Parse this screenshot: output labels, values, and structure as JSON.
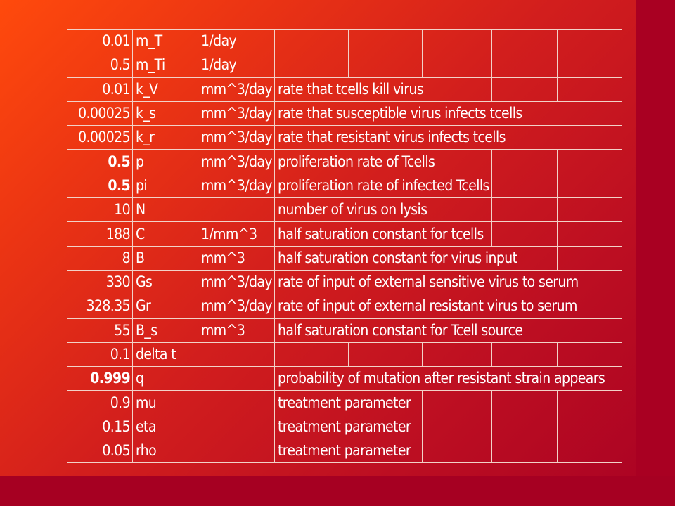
{
  "rows": [
    {
      "value": "0.01",
      "name": "m_T",
      "unit": "1/day",
      "description": "",
      "bold": false
    },
    {
      "value": "0.5",
      "name": "m_Ti",
      "unit": "1/day",
      "description": "",
      "bold": false
    },
    {
      "value": "0.01",
      "name": "k_V",
      "unit": "mm^3/day",
      "description": "rate that tcells kill virus",
      "bold": false
    },
    {
      "value": "0.00025",
      "name": "k_s",
      "unit": "mm^3/day",
      "description": "rate that susceptible virus infects tcells",
      "bold": false
    },
    {
      "value": "0.00025",
      "name": "k_r",
      "unit": "mm^3/day",
      "description": "rate that resistant virus infects tcells",
      "bold": false
    },
    {
      "value": "0.5",
      "name": "p",
      "unit": "mm^3/day",
      "description": "proliferation rate of Tcells",
      "bold": true
    },
    {
      "value": "0.5",
      "name": "pi",
      "unit": "mm^3/day",
      "description": "proliferation rate of infected Tcells",
      "bold": true
    },
    {
      "value": "10",
      "name": "N",
      "unit": "",
      "description": "number of virus on lysis",
      "bold": false
    },
    {
      "value": "188",
      "name": "C",
      "unit": "1/mm^3",
      "description": "half saturation constant for tcells",
      "bold": false
    },
    {
      "value": "8",
      "name": "B",
      "unit": "mm^3",
      "description": "half saturation constant for virus input",
      "bold": false
    },
    {
      "value": "330",
      "name": "Gs",
      "unit": "mm^3/day",
      "description": "rate of input of external sensitive virus to serum",
      "bold": false
    },
    {
      "value": "328.35",
      "name": "Gr",
      "unit": "mm^3/day",
      "description": "rate of input of external resistant virus to serum",
      "bold": false
    },
    {
      "value": "55",
      "name": "B_s",
      "unit": "mm^3",
      "description": "half saturation constant for Tcell source",
      "bold": false
    },
    {
      "value": "0.1",
      "name": "delta t",
      "unit": "",
      "description": "",
      "bold": false
    },
    {
      "value": "0.999",
      "name": "q",
      "unit": "",
      "description": "probability of mutation after resistant strain appears",
      "bold": true
    },
    {
      "value": "0.9",
      "name": "mu",
      "unit": "",
      "description": "treatment parameter",
      "bold": false
    },
    {
      "value": "0.15",
      "name": "eta",
      "unit": "",
      "description": "treatment parameter",
      "bold": false
    },
    {
      "value": "0.05",
      "name": "rho",
      "unit": "",
      "description": "treatment parameter",
      "bold": false
    }
  ]
}
